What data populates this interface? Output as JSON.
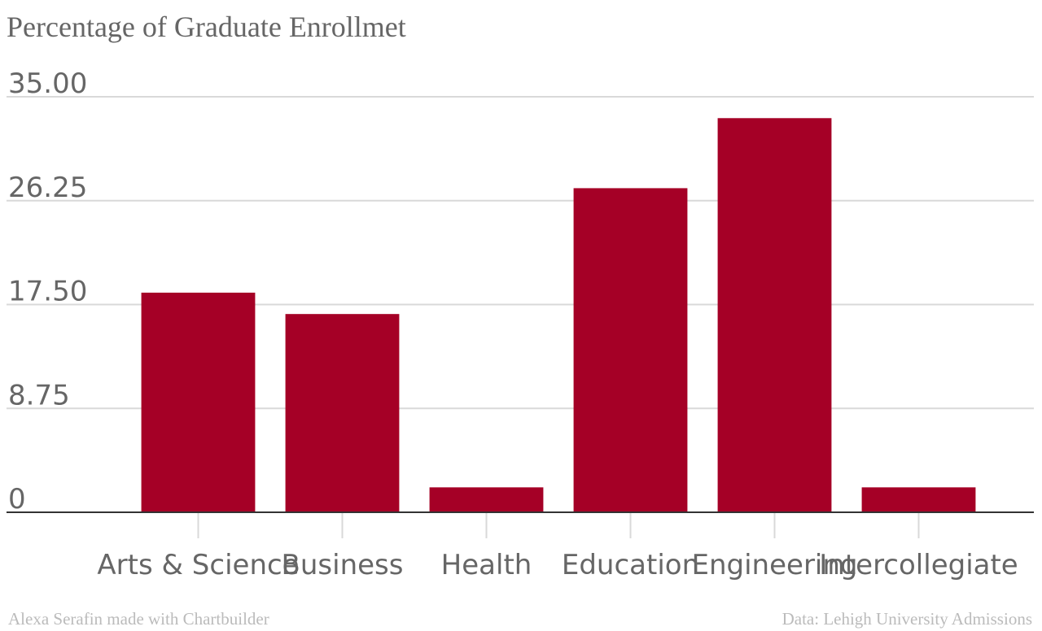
{
  "chart_data": {
    "type": "bar",
    "title": "Percentage of Graduate Enrollmet",
    "xlabel": "",
    "ylabel": "",
    "categories": [
      "Arts & Science",
      "Business",
      "Health",
      "Education",
      "Engineering",
      "Intercollegiate"
    ],
    "values": [
      18.5,
      16.7,
      2.1,
      27.3,
      33.2,
      2.1
    ],
    "ylim": [
      0,
      35
    ],
    "yticks": [
      0,
      8.75,
      17.5,
      26.25,
      35
    ],
    "ytick_labels": [
      "0",
      "8.75",
      "17.50",
      "26.25",
      "35.00"
    ],
    "grid": true,
    "legend": "none",
    "bar_color": "#a50026"
  },
  "footer": {
    "credit": "Alexa Serafin made with Chartbuilder",
    "source": "Data: Lehigh University Admissions"
  }
}
